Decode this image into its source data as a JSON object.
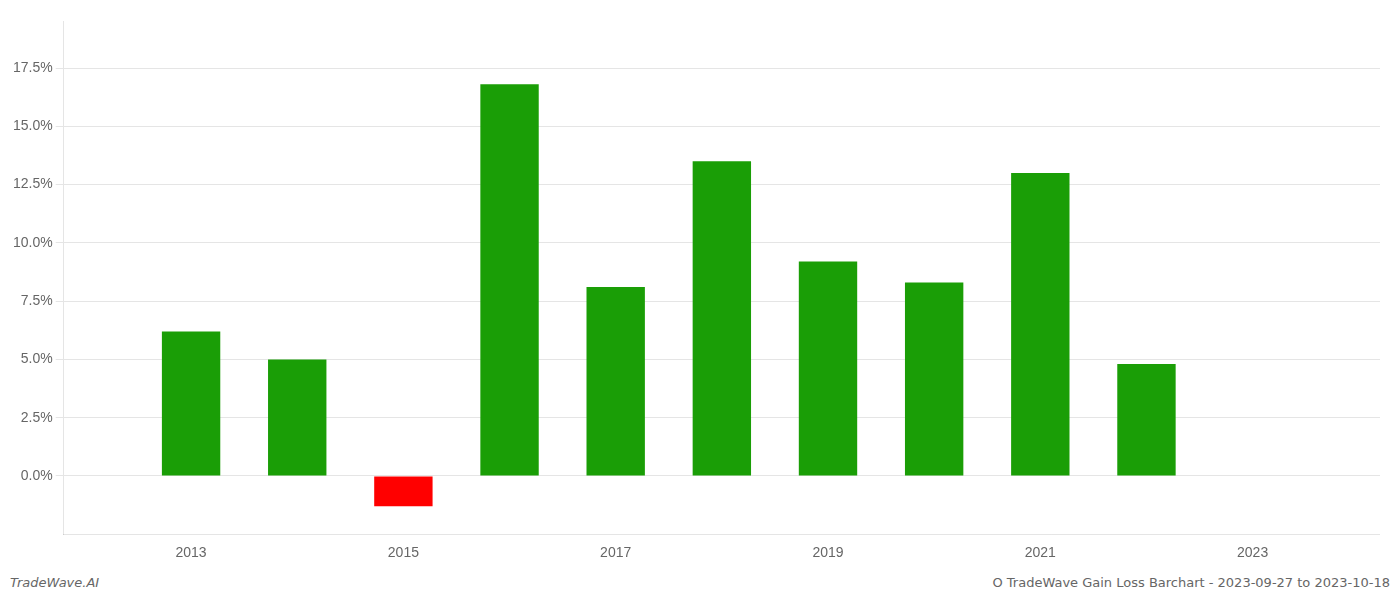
{
  "chart_data": {
    "type": "bar",
    "x": [
      2013,
      2014,
      2015,
      2016,
      2017,
      2018,
      2019,
      2020,
      2021,
      2022,
      2023
    ],
    "values": [
      0.062,
      0.05,
      -0.013,
      0.168,
      0.081,
      0.135,
      0.092,
      0.083,
      0.13,
      0.048,
      0.0
    ],
    "colors": [
      "#1a9e06",
      "#1a9e06",
      "#ff0000",
      "#1a9e06",
      "#1a9e06",
      "#1a9e06",
      "#1a9e06",
      "#1a9e06",
      "#1a9e06",
      "#1a9e06",
      "#1a9e06"
    ],
    "xlim": [
      2011.8,
      2024.2
    ],
    "xticks": [
      2013,
      2015,
      2017,
      2019,
      2021,
      2023
    ],
    "ylim": [
      -0.025,
      0.195
    ],
    "yticks": [
      {
        "value": 0.0,
        "label": "0.0%"
      },
      {
        "value": 0.025,
        "label": "2.5%"
      },
      {
        "value": 0.05,
        "label": "5.0%"
      },
      {
        "value": 0.075,
        "label": "7.5%"
      },
      {
        "value": 0.1,
        "label": "10.0%"
      },
      {
        "value": 0.125,
        "label": "12.5%"
      },
      {
        "value": 0.15,
        "label": "15.0%"
      },
      {
        "value": 0.175,
        "label": "17.5%"
      }
    ],
    "grid": true,
    "annotations": [
      "TradeWave.AI",
      "O TradeWave Gain Loss Barchart - 2023-09-27 to 2023-10-18"
    ]
  }
}
